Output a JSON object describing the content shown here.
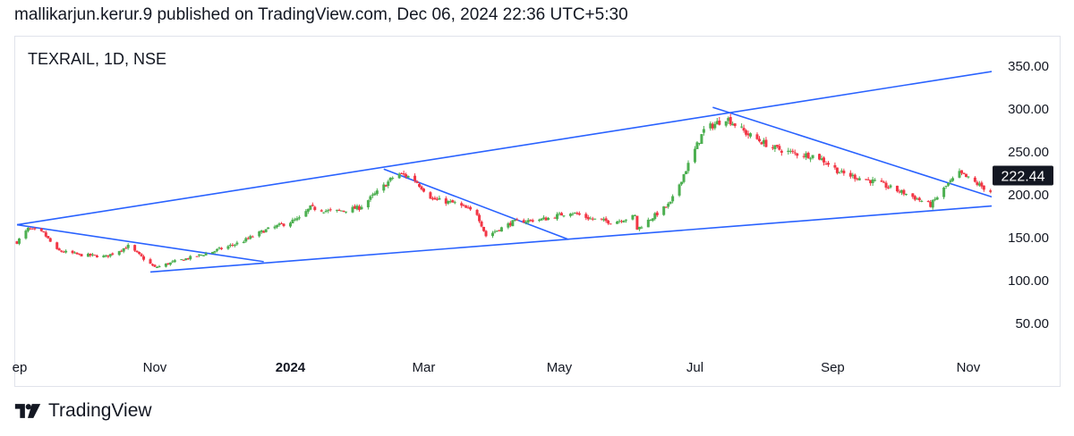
{
  "header": {
    "publish_line": "mallikarjun.kerur.9 published on TradingView.com, Dec 06, 2024 22:36 UTC+5:30"
  },
  "symbol": "TEXRAIL, 1D, NSE",
  "brand": {
    "name": "TradingView"
  },
  "colors": {
    "up": "#4caf50",
    "down": "#f23645",
    "trendline": "#2962ff",
    "price_badge_bg": "#131722",
    "price_badge_text": "#ffffff"
  },
  "chart_data": {
    "type": "candlestick",
    "title": "",
    "xlabel": "",
    "ylabel": "",
    "ylim": [
      0,
      390
    ],
    "y_ticks": [
      "350.00",
      "300.00",
      "250.00",
      "200.00",
      "150.00",
      "100.00",
      "50.00"
    ],
    "y_tick_values": [
      350,
      300,
      250,
      200,
      150,
      100,
      50
    ],
    "x_ticks": [
      {
        "label": "ep",
        "date": "2023-09-01",
        "bold": false
      },
      {
        "label": "Nov",
        "date": "2023-11-01",
        "bold": false
      },
      {
        "label": "2024",
        "date": "2024-01-01",
        "bold": true
      },
      {
        "label": "Mar",
        "date": "2024-03-01",
        "bold": false
      },
      {
        "label": "May",
        "date": "2024-05-01",
        "bold": false
      },
      {
        "label": "Jul",
        "date": "2024-07-01",
        "bold": false
      },
      {
        "label": "Sep",
        "date": "2024-09-01",
        "bold": false
      },
      {
        "label": "Nov",
        "date": "2024-11-01",
        "bold": false
      }
    ],
    "last_price": "222.44",
    "price_path": [
      [
        "2023-08-31",
        145
      ],
      [
        "2023-09-05",
        160
      ],
      [
        "2023-09-12",
        155
      ],
      [
        "2023-09-18",
        135
      ],
      [
        "2023-09-28",
        130
      ],
      [
        "2023-10-10",
        128
      ],
      [
        "2023-10-20",
        140
      ],
      [
        "2023-11-01",
        115
      ],
      [
        "2023-11-10",
        122
      ],
      [
        "2023-11-25",
        132
      ],
      [
        "2023-12-10",
        145
      ],
      [
        "2023-12-20",
        158
      ],
      [
        "2024-01-05",
        172
      ],
      [
        "2024-01-10",
        185
      ],
      [
        "2024-01-20",
        180
      ],
      [
        "2024-02-01",
        185
      ],
      [
        "2024-02-10",
        205
      ],
      [
        "2024-02-18",
        225
      ],
      [
        "2024-02-25",
        220
      ],
      [
        "2024-03-05",
        195
      ],
      [
        "2024-03-15",
        190
      ],
      [
        "2024-03-25",
        178
      ],
      [
        "2024-03-29",
        152
      ],
      [
        "2024-04-10",
        168
      ],
      [
        "2024-04-25",
        172
      ],
      [
        "2024-05-06",
        180
      ],
      [
        "2024-05-15",
        172
      ],
      [
        "2024-05-25",
        168
      ],
      [
        "2024-06-04",
        175
      ],
      [
        "2024-06-05",
        160
      ],
      [
        "2024-06-20",
        190
      ],
      [
        "2024-07-05",
        275
      ],
      [
        "2024-07-15",
        290
      ],
      [
        "2024-07-25",
        270
      ],
      [
        "2024-08-05",
        255
      ],
      [
        "2024-08-15",
        248
      ],
      [
        "2024-08-25",
        245
      ],
      [
        "2024-09-05",
        225
      ],
      [
        "2024-09-20",
        215
      ],
      [
        "2024-10-05",
        200
      ],
      [
        "2024-10-15",
        188
      ],
      [
        "2024-10-22",
        210
      ],
      [
        "2024-10-28",
        225
      ],
      [
        "2024-11-10",
        205
      ],
      [
        "2024-11-20",
        195
      ],
      [
        "2024-11-25",
        205
      ],
      [
        "2024-12-06",
        222.44
      ]
    ],
    "trendlines": [
      {
        "from": [
          "2023-08-31",
          165
        ],
        "to": [
          "2025-01-15",
          370
        ]
      },
      {
        "from": [
          "2023-10-30",
          110
        ],
        "to": [
          "2025-01-15",
          200
        ]
      },
      {
        "from": [
          "2023-08-31",
          165
        ],
        "to": [
          "2023-12-20",
          122
        ]
      },
      {
        "from": [
          "2024-02-12",
          230
        ],
        "to": [
          "2024-05-05",
          148
        ]
      },
      {
        "from": [
          "2024-07-09",
          302
        ],
        "to": [
          "2024-11-17",
          193
        ]
      }
    ]
  }
}
